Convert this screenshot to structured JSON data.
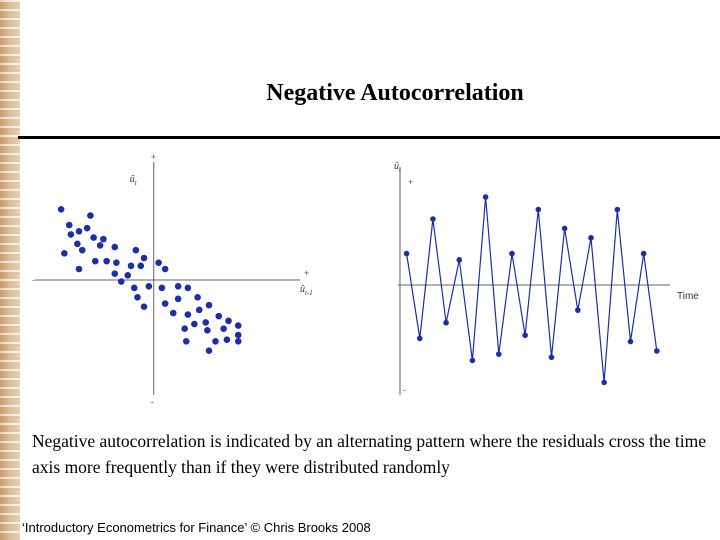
{
  "slide": {
    "title": "Negative Autocorrelation",
    "description": "Negative autocorrelation is indicated by an alternating pattern where the residuals cross the time axis more frequently than if they were distributed randomly",
    "footer": "‘Introductory Econometrics for Finance’ © Chris Brooks 2008"
  },
  "chart_data": [
    {
      "type": "scatter",
      "xlabel": "û_{t-1}",
      "ylabel": "û_t",
      "axis_tick_pos": "+",
      "axis_tick_neg": "-",
      "marker_color": "#1a2fa8",
      "points": [
        [
          -2.85,
          2.25
        ],
        [
          -2.6,
          1.75
        ],
        [
          -2.3,
          1.55
        ],
        [
          -2.05,
          1.65
        ],
        [
          -1.95,
          2.05
        ],
        [
          -2.55,
          1.45
        ],
        [
          -2.35,
          1.15
        ],
        [
          -2.2,
          0.95
        ],
        [
          -1.85,
          1.35
        ],
        [
          -1.65,
          1.1
        ],
        [
          -1.55,
          1.3
        ],
        [
          -1.2,
          1.05
        ],
        [
          -0.55,
          0.95
        ],
        [
          -2.75,
          0.85
        ],
        [
          -2.3,
          0.35
        ],
        [
          -1.8,
          0.6
        ],
        [
          -1.45,
          0.6
        ],
        [
          -1.15,
          0.55
        ],
        [
          -0.7,
          0.45
        ],
        [
          -0.4,
          0.45
        ],
        [
          -0.3,
          0.7
        ],
        [
          0.15,
          0.55
        ],
        [
          -1.2,
          0.2
        ],
        [
          -0.8,
          0.15
        ],
        [
          0.35,
          0.35
        ],
        [
          -1.0,
          -0.05
        ],
        [
          -0.6,
          -0.25
        ],
        [
          -0.15,
          -0.2
        ],
        [
          0.25,
          -0.25
        ],
        [
          0.75,
          -0.2
        ],
        [
          1.05,
          -0.25
        ],
        [
          -0.5,
          -0.55
        ],
        [
          -0.3,
          -0.85
        ],
        [
          0.35,
          -0.75
        ],
        [
          0.75,
          -0.6
        ],
        [
          1.35,
          -0.55
        ],
        [
          1.7,
          -0.8
        ],
        [
          0.6,
          -1.05
        ],
        [
          1.05,
          -1.1
        ],
        [
          1.4,
          -0.95
        ],
        [
          2.0,
          -1.15
        ],
        [
          1.25,
          -1.4
        ],
        [
          1.6,
          -1.35
        ],
        [
          2.3,
          -1.3
        ],
        [
          2.6,
          -1.45
        ],
        [
          0.95,
          -1.55
        ],
        [
          1.65,
          -1.6
        ],
        [
          2.15,
          -1.55
        ],
        [
          2.6,
          -1.75
        ],
        [
          1.0,
          -1.95
        ],
        [
          1.9,
          -1.95
        ],
        [
          2.25,
          -1.9
        ],
        [
          2.6,
          -1.95
        ],
        [
          1.7,
          -2.25
        ]
      ],
      "xlim": [
        -3.5,
        4.5
      ],
      "ylim": [
        -3.5,
        3.5
      ]
    },
    {
      "type": "line",
      "xlabel": "Time",
      "ylabel": "û_t",
      "axis_tick_pos": "+",
      "axis_tick_neg": "-",
      "marker_color": "#1a2fa8",
      "x": [
        1,
        2,
        3,
        4,
        5,
        6,
        7,
        8,
        9,
        10,
        11,
        12,
        13,
        14,
        15,
        16,
        17,
        18,
        19,
        20
      ],
      "y": [
        1.0,
        -1.7,
        2.1,
        -1.2,
        0.8,
        -2.4,
        2.8,
        -2.2,
        1.0,
        -1.6,
        2.4,
        -2.3,
        1.8,
        -0.8,
        1.5,
        -3.1,
        2.4,
        -1.8,
        1.0,
        -2.1
      ],
      "xlim": [
        0.5,
        21
      ],
      "ylim": [
        -3.5,
        3.5
      ]
    }
  ]
}
